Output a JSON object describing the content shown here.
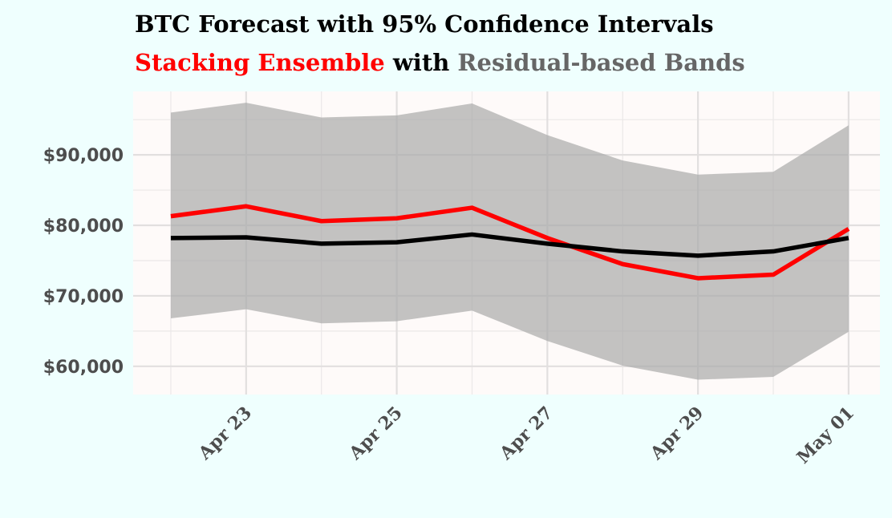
{
  "chart_data": {
    "type": "line",
    "title": "BTC Forecast with 95% Confidence Intervals",
    "subtitle_parts": [
      {
        "text": "Stacking Ensemble",
        "color": "#ff0000"
      },
      {
        "text": " with ",
        "color": "#000000"
      },
      {
        "text": "Residual-based Bands",
        "color": "#666666"
      }
    ],
    "x": [
      "2025-04-22",
      "2025-04-23",
      "2025-04-24",
      "2025-04-25",
      "2025-04-26",
      "2025-04-27",
      "2025-04-28",
      "2025-04-29",
      "2025-04-30",
      "2025-05-01"
    ],
    "x_ticks": [
      {
        "date": "2025-04-23",
        "label": "Apr 23"
      },
      {
        "date": "2025-04-25",
        "label": "Apr 25"
      },
      {
        "date": "2025-04-27",
        "label": "Apr 27"
      },
      {
        "date": "2025-04-29",
        "label": "Apr 29"
      },
      {
        "date": "2025-05-01",
        "label": "May 01"
      }
    ],
    "y_ticks": [
      {
        "value": 60000,
        "label": "$60,000"
      },
      {
        "value": 70000,
        "label": "$70,000"
      },
      {
        "value": 80000,
        "label": "$80,000"
      },
      {
        "value": 90000,
        "label": "$90,000"
      }
    ],
    "xlim": [
      "2025-04-21T12:00",
      "2025-05-01T10:00"
    ],
    "ylim": [
      56000,
      99000
    ],
    "grid": true,
    "series": [
      {
        "name": "Stacking Ensemble",
        "color": "#ff0000",
        "values": [
          81300,
          82700,
          80600,
          81000,
          82500,
          78200,
          74500,
          72500,
          73000,
          79500
        ]
      },
      {
        "color": "#000000",
        "values": [
          78200,
          78300,
          77400,
          77600,
          78700,
          77400,
          76300,
          75700,
          76300,
          78200
        ]
      }
    ],
    "band": {
      "name": "Residual-based Bands",
      "color": "#a9a9a9",
      "lower": [
        66800,
        68100,
        66100,
        66400,
        67900,
        63600,
        60100,
        58100,
        58500,
        64900
      ],
      "upper": [
        96000,
        97400,
        95300,
        95600,
        97300,
        92800,
        89200,
        87200,
        87600,
        94200
      ]
    }
  }
}
